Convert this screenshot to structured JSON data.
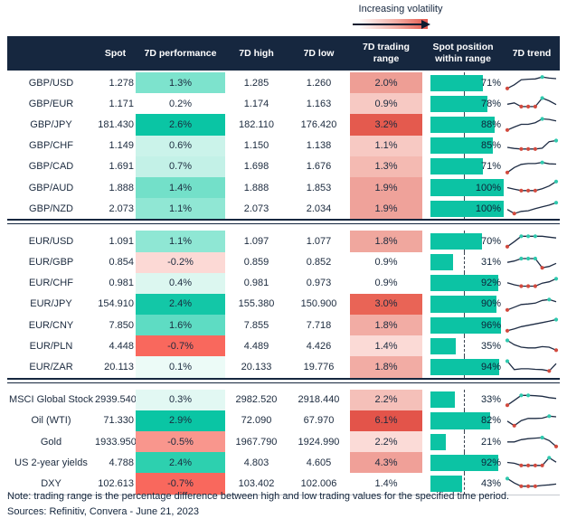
{
  "volatility_legend": {
    "label": "Increasing volatility"
  },
  "footer": {
    "note": "Note: trading range is the percentage difference between high and low trading values for the specified time period.",
    "sources": "Sources: Refinitiv, Convera - June 21, 2023"
  },
  "colors": {
    "header_bg": "#16273f",
    "bar_teal": "#0cc3a4",
    "spark_line": "#1e2c44",
    "spark_min_dot": "#d24a3e",
    "spark_max_dot": "#2fc9ae",
    "heat_max_teal": "#0ac5a4",
    "heat_max_red": "#e3544a"
  },
  "chart_data": {
    "type": "table",
    "columns": [
      "",
      "Spot",
      "7D performance",
      "7D high",
      "7D low",
      "7D trading range",
      "Spot position within range",
      "7D trend"
    ],
    "groups": [
      {
        "rows": [
          {
            "name": "GBP/USD",
            "spot": "1.278",
            "perf": "1.3%",
            "perf_bg": "#7de3cd",
            "high": "1.285",
            "low": "1.260",
            "range": "2.0%",
            "range_bg": "#ee9e95",
            "position_pct": 71,
            "position_label": "71%",
            "spark": {
              "points": [
                0.08,
                0.35,
                0.72,
                0.76,
                0.78,
                0.92,
                0.84,
                0.8
              ],
              "min_dots": [
                0
              ],
              "max_dots": [
                5
              ]
            }
          },
          {
            "name": "GBP/EUR",
            "spot": "1.171",
            "perf": "0.2%",
            "perf_bg": "#ffffff",
            "high": "1.174",
            "low": "1.163",
            "range": "0.9%",
            "range_bg": "#f7c9c3",
            "position_pct": 78,
            "position_label": "78%",
            "spark": {
              "points": [
                0.45,
                0.55,
                0.27,
                0.27,
                0.27,
                0.9,
                0.7,
                0.42
              ],
              "min_dots": [
                2,
                3,
                4
              ],
              "max_dots": [
                5
              ]
            }
          },
          {
            "name": "GBP/JPY",
            "spot": "181.430",
            "perf": "2.6%",
            "perf_bg": "#0ac5a4",
            "high": "182.110",
            "low": "176.420",
            "range": "3.2%",
            "range_bg": "#e45a4e",
            "position_pct": 88,
            "position_label": "88%",
            "spark": {
              "points": [
                0.08,
                0.3,
                0.5,
                0.5,
                0.62,
                0.9,
                0.86,
                0.75
              ],
              "min_dots": [
                0
              ],
              "max_dots": [
                5
              ]
            }
          },
          {
            "name": "GBP/CHF",
            "spot": "1.149",
            "perf": "0.6%",
            "perf_bg": "#cbf3ea",
            "high": "1.150",
            "low": "1.138",
            "range": "1.1%",
            "range_bg": "#f7c9c3",
            "position_pct": 85,
            "position_label": "85%",
            "spark": {
              "points": [
                0.4,
                0.32,
                0.28,
                0.28,
                0.28,
                0.34,
                0.82,
                0.9
              ],
              "min_dots": [
                2,
                3,
                4
              ],
              "max_dots": [
                7
              ]
            }
          },
          {
            "name": "GBP/CAD",
            "spot": "1.691",
            "perf": "0.7%",
            "perf_bg": "#c3f1e7",
            "high": "1.698",
            "low": "1.676",
            "range": "1.3%",
            "range_bg": "#f4bab2",
            "position_pct": 71,
            "position_label": "71%",
            "spark": {
              "points": [
                0.08,
                0.45,
                0.68,
                0.74,
                0.74,
                0.82,
                0.72,
                0.7
              ],
              "min_dots": [
                0
              ],
              "max_dots": [
                5
              ]
            }
          },
          {
            "name": "GBP/AUD",
            "spot": "1.888",
            "perf": "1.4%",
            "perf_bg": "#73e0c9",
            "high": "1.888",
            "low": "1.853",
            "range": "1.9%",
            "range_bg": "#efa29a",
            "position_pct": 100,
            "position_label": "100%",
            "spark": {
              "points": [
                0.5,
                0.38,
                0.28,
                0.28,
                0.28,
                0.42,
                0.62,
                0.95
              ],
              "min_dots": [
                2,
                3,
                4
              ],
              "max_dots": [
                7
              ]
            }
          },
          {
            "name": "GBP/NZD",
            "spot": "2.073",
            "perf": "1.1%",
            "perf_bg": "#90e7d4",
            "high": "2.073",
            "low": "2.034",
            "range": "1.9%",
            "range_bg": "#efa29a",
            "position_pct": 100,
            "position_label": "100%",
            "spark": {
              "points": [
                0.42,
                0.12,
                0.28,
                0.33,
                0.48,
                0.62,
                0.74,
                0.92
              ],
              "min_dots": [
                1
              ],
              "max_dots": [
                7
              ]
            }
          }
        ]
      },
      {
        "rows": [
          {
            "name": "EUR/USD",
            "spot": "1.091",
            "perf": "1.1%",
            "perf_bg": "#8fe7d4",
            "high": "1.097",
            "low": "1.077",
            "range": "1.8%",
            "range_bg": "#f0a79e",
            "position_pct": 70,
            "position_label": "70%",
            "spark": {
              "points": [
                0.08,
                0.45,
                0.85,
                0.85,
                0.85,
                0.85,
                0.78,
                0.72
              ],
              "min_dots": [
                0
              ],
              "max_dots": [
                2,
                3,
                4
              ]
            }
          },
          {
            "name": "EUR/GBP",
            "spot": "0.854",
            "perf": "-0.2%",
            "perf_bg": "#fcd9d5",
            "high": "0.859",
            "low": "0.852",
            "range": "0.9%",
            "range_bg": "#ffffff",
            "position_pct": 31,
            "position_label": "31%",
            "spark": {
              "points": [
                0.52,
                0.62,
                0.8,
                0.8,
                0.8,
                0.12,
                0.22,
                0.45
              ],
              "min_dots": [
                5
              ],
              "max_dots": [
                2,
                3,
                4
              ]
            }
          },
          {
            "name": "EUR/CHF",
            "spot": "0.981",
            "perf": "0.4%",
            "perf_bg": "#dcf7f0",
            "high": "0.981",
            "low": "0.973",
            "range": "0.9%",
            "range_bg": "#ffffff",
            "position_pct": 92,
            "position_label": "92%",
            "spark": {
              "points": [
                0.55,
                0.4,
                0.3,
                0.3,
                0.3,
                0.52,
                0.62,
                0.85
              ],
              "min_dots": [
                2,
                3,
                4
              ],
              "max_dots": [
                7
              ]
            }
          },
          {
            "name": "EUR/JPY",
            "spot": "154.910",
            "perf": "2.4%",
            "perf_bg": "#13c7a7",
            "high": "155.380",
            "low": "150.900",
            "range": "3.0%",
            "range_bg": "#e96456",
            "position_pct": 90,
            "position_label": "90%",
            "spark": {
              "points": [
                0.08,
                0.28,
                0.48,
                0.52,
                0.58,
                0.78,
                0.85,
                0.68
              ],
              "min_dots": [
                0
              ],
              "max_dots": [
                6
              ]
            }
          },
          {
            "name": "EUR/CNY",
            "spot": "7.850",
            "perf": "1.6%",
            "perf_bg": "#5edcc3",
            "high": "7.855",
            "low": "7.718",
            "range": "1.8%",
            "range_bg": "#f2aca4",
            "position_pct": 96,
            "position_label": "96%",
            "spark": {
              "points": [
                0.08,
                0.22,
                0.38,
                0.48,
                0.58,
                0.68,
                0.78,
                0.9
              ],
              "min_dots": [
                0
              ],
              "max_dots": [
                7
              ]
            }
          },
          {
            "name": "EUR/PLN",
            "spot": "4.448",
            "perf": "-0.7%",
            "perf_bg": "#f9685d",
            "high": "4.489",
            "low": "4.426",
            "range": "1.4%",
            "range_bg": "#fbdad6",
            "position_pct": 35,
            "position_label": "35%",
            "spark": {
              "points": [
                0.9,
                0.58,
                0.4,
                0.35,
                0.35,
                0.44,
                0.4,
                0.18
              ],
              "min_dots": [
                7
              ],
              "max_dots": [
                0
              ]
            }
          },
          {
            "name": "EUR/ZAR",
            "spot": "20.113",
            "perf": "0.1%",
            "perf_bg": "#ecfbf7",
            "high": "20.133",
            "low": "19.776",
            "range": "1.8%",
            "range_bg": "#f2aca4",
            "position_pct": 94,
            "position_label": "94%",
            "spark": {
              "points": [
                0.9,
                0.28,
                0.34,
                0.34,
                0.3,
                0.28,
                0.18,
                0.72
              ],
              "min_dots": [
                6
              ],
              "max_dots": [
                0
              ]
            }
          }
        ]
      },
      {
        "rows": [
          {
            "name": "MSCI Global Stock",
            "spot": "2939.540",
            "perf": "0.3%",
            "perf_bg": "#e2f8f3",
            "high": "2982.520",
            "low": "2918.440",
            "range": "2.2%",
            "range_bg": "#f5c0b9",
            "position_pct": 33,
            "position_label": "33%",
            "spark": {
              "points": [
                0.12,
                0.48,
                0.85,
                0.85,
                0.82,
                0.78,
                0.68,
                0.62
              ],
              "min_dots": [
                0
              ],
              "max_dots": [
                2,
                3
              ]
            }
          },
          {
            "name": "Oil (WTI)",
            "spot": "71.330",
            "perf": "2.9%",
            "perf_bg": "#0ac5a4",
            "high": "72.090",
            "low": "67.970",
            "range": "6.1%",
            "range_bg": "#e3544a",
            "position_pct": 82,
            "position_label": "82%",
            "spark": {
              "points": [
                0.48,
                0.15,
                0.52,
                0.68,
                0.68,
                0.7,
                0.85,
                0.8
              ],
              "min_dots": [
                1
              ],
              "max_dots": [
                6
              ]
            }
          },
          {
            "name": "Gold",
            "spot": "1933.950",
            "perf": "-0.5%",
            "perf_bg": "#f9968d",
            "high": "1967.790",
            "low": "1924.990",
            "range": "2.2%",
            "range_bg": "#fbdbd7",
            "position_pct": 21,
            "position_label": "21%",
            "spark": {
              "points": [
                0.48,
                0.48,
                0.65,
                0.72,
                0.76,
                0.8,
                0.58,
                0.15
              ],
              "min_dots": [
                7
              ],
              "max_dots": [
                5
              ]
            }
          },
          {
            "name": "US 2-year yields",
            "spot": "4.788",
            "perf": "2.4%",
            "perf_bg": "#2dd0af",
            "high": "4.803",
            "low": "4.605",
            "range": "4.3%",
            "range_bg": "#f0a098",
            "position_pct": 92,
            "position_label": "92%",
            "spark": {
              "points": [
                0.5,
                0.44,
                0.28,
                0.28,
                0.28,
                0.28,
                0.85,
                0.52
              ],
              "min_dots": [
                2,
                3,
                4,
                5
              ],
              "max_dots": [
                6
              ]
            }
          },
          {
            "name": "DXY",
            "spot": "102.613",
            "perf": "-0.7%",
            "perf_bg": "#f9685d",
            "high": "103.402",
            "low": "102.006",
            "range": "1.4%",
            "range_bg": "#ffffff",
            "position_pct": 43,
            "position_label": "43%",
            "spark": {
              "points": [
                0.85,
                0.52,
                0.28,
                0.28,
                0.28,
                0.34,
                0.38,
                0.44
              ],
              "min_dots": [
                2,
                3,
                4
              ],
              "max_dots": [
                0
              ]
            }
          }
        ]
      }
    ]
  }
}
